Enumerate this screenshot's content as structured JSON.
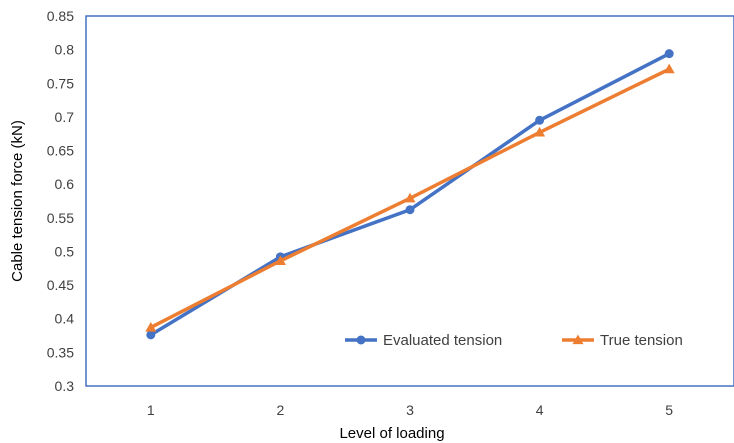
{
  "chart_data": {
    "type": "line",
    "xlabel": "Level of loading",
    "ylabel": "Cable tension force (kN)",
    "x": [
      1,
      2,
      3,
      4,
      5
    ],
    "x_tick_labels": [
      "1",
      "2",
      "3",
      "4",
      "5"
    ],
    "ylim": [
      0.3,
      0.85
    ],
    "y_ticks": [
      0.3,
      0.35,
      0.4,
      0.45,
      0.5,
      0.55,
      0.6,
      0.65,
      0.7,
      0.75,
      0.8,
      0.85
    ],
    "y_tick_labels": [
      "0.3",
      "0.35",
      "0.4",
      "0.45",
      "0.5",
      "0.55",
      "0.6",
      "0.65",
      "0.7",
      "0.75",
      "0.8",
      "0.85"
    ],
    "grid": false,
    "legend_position": "bottom-right",
    "series": [
      {
        "name": "Evaluated tension",
        "values": [
          0.376,
          0.492,
          0.562,
          0.695,
          0.794
        ],
        "color": "#4472C4",
        "marker": "circle"
      },
      {
        "name": "True tension",
        "values": [
          0.387,
          0.486,
          0.579,
          0.677,
          0.771
        ],
        "color": "#ED7D31",
        "marker": "triangle"
      }
    ]
  }
}
